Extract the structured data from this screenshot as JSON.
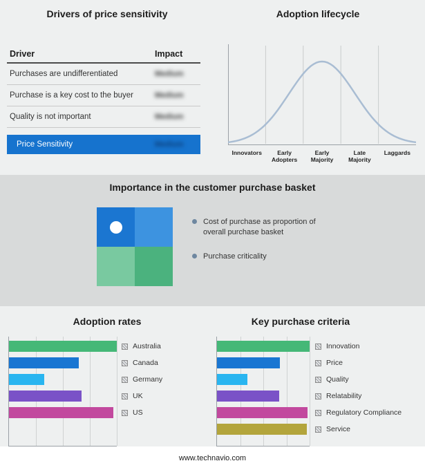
{
  "drivers": {
    "title": "Drivers of price sensitivity",
    "columns": {
      "driver": "Driver",
      "impact": "Impact"
    },
    "rows": [
      {
        "driver": "Purchases are undifferentiated",
        "impact": "Medium"
      },
      {
        "driver": "Purchase is a key cost to the buyer",
        "impact": "Medium"
      },
      {
        "driver": "Quality is not important",
        "impact": "Medium"
      }
    ],
    "highlight": {
      "driver": "Price Sensitivity",
      "impact": "Medium"
    },
    "highlight_color": "#1673ce",
    "impact_values_blurred": true
  },
  "lifecycle": {
    "title": "Adoption lifecycle",
    "stages": [
      "Innovators",
      "Early Adopters",
      "Early Majority",
      "Late Majority",
      "Laggards"
    ],
    "curve_color": "#a9bdd3",
    "curve_shape": "bell"
  },
  "basket": {
    "title": "Importance in the customer purchase basket",
    "bullets": [
      "Cost of purchase as proportion of overall purchase basket",
      "Purchase criticality"
    ],
    "quadrant_colors": [
      "#1b76d1",
      "#3d93e0",
      "#79c9a0",
      "#4bb27e"
    ],
    "marker_quadrant": "top-left"
  },
  "chart_data": [
    {
      "type": "bar",
      "orientation": "horizontal",
      "title": "Adoption rates",
      "categories": [
        "Australia",
        "Canada",
        "Germany",
        "UK",
        "US"
      ],
      "values": [
        100,
        65,
        33,
        67,
        97
      ],
      "colors": [
        "#45b877",
        "#1976d2",
        "#29b5f0",
        "#7a52c7",
        "#c2499e"
      ],
      "value_unit": "relative percent of axis (no tick labels shown)",
      "legend_position": "right",
      "grid": true
    },
    {
      "type": "bar",
      "orientation": "horizontal",
      "title": "Key purchase criteria",
      "categories": [
        "Innovation",
        "Price",
        "Quality",
        "Relatability",
        "Regulatory Compliance",
        "Service"
      ],
      "values": [
        100,
        68,
        33,
        67,
        98,
        97
      ],
      "colors": [
        "#45b877",
        "#1976d2",
        "#29b5f0",
        "#7a52c7",
        "#c2499e",
        "#b3a53c"
      ],
      "value_unit": "relative percent of axis (no tick labels shown)",
      "legend_position": "right",
      "grid": true
    }
  ],
  "footer_text": "www.technavio.com"
}
